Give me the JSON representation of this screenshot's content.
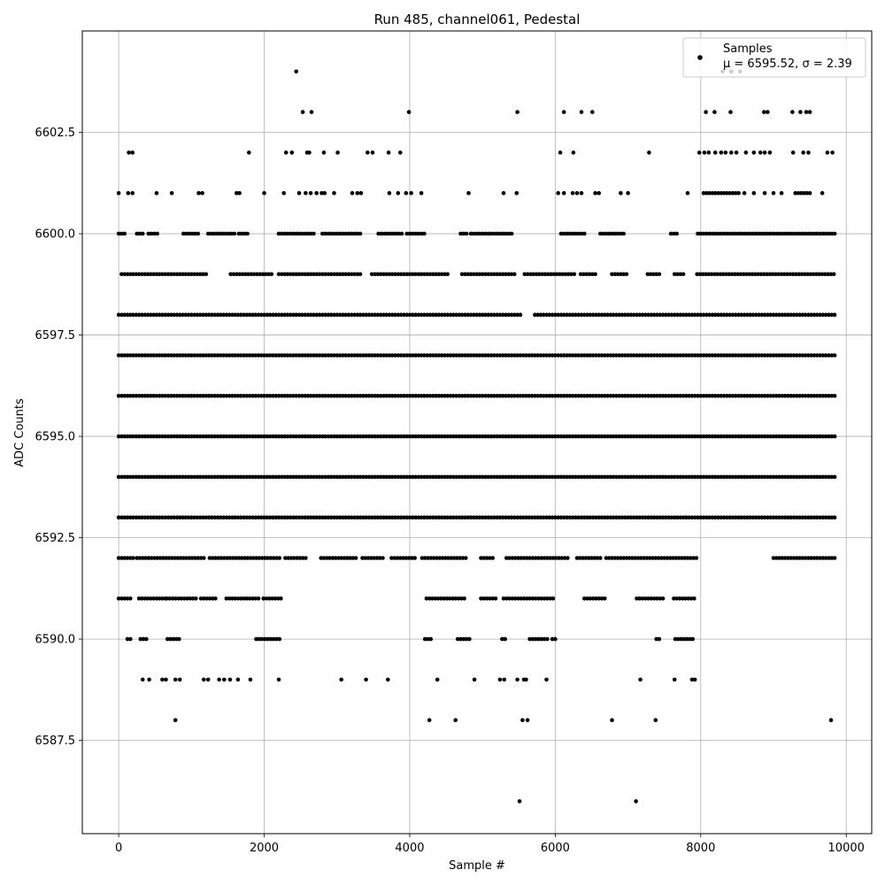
{
  "chart_data": {
    "type": "scatter",
    "title": "Run 485, channel061, Pedestal",
    "xlabel": "Sample #",
    "ylabel": "ADC Counts",
    "xlim": [
      -500,
      10350
    ],
    "ylim": [
      6585.2,
      6605.0
    ],
    "xticks": [
      0,
      2000,
      4000,
      6000,
      8000,
      10000
    ],
    "xtick_labels": [
      "0",
      "2000",
      "4000",
      "6000",
      "8000",
      "10000"
    ],
    "yticks": [
      6587.5,
      6590.0,
      6592.5,
      6595.0,
      6597.5,
      6600.0,
      6602.5
    ],
    "ytick_labels": [
      "6587.5",
      "6590.0",
      "6592.5",
      "6595.0",
      "6597.5",
      "6600.0",
      "6602.5"
    ],
    "grid": true,
    "legend_position": "top-right",
    "marker_color": "#000000",
    "series": [
      {
        "name": "Samples",
        "stats_label": "μ = 6595.52, σ = 2.39",
        "x_range": [
          0,
          9840
        ],
        "levels": [
          {
            "y": 6597,
            "segments": [
              [
                0,
                9840
              ]
            ]
          },
          {
            "y": 6596,
            "segments": [
              [
                0,
                9840
              ]
            ]
          },
          {
            "y": 6595,
            "segments": [
              [
                0,
                9840
              ]
            ]
          },
          {
            "y": 6594,
            "segments": [
              [
                0,
                9840
              ]
            ]
          },
          {
            "y": 6593,
            "segments": [
              [
                0,
                9840
              ]
            ]
          },
          {
            "y": 6598,
            "segments": [
              [
                0,
                5540
              ],
              [
                5720,
                9840
              ]
            ]
          },
          {
            "y": 6599,
            "segments": [
              [
                40,
                1230
              ],
              [
                1540,
                2120
              ],
              [
                2200,
                3320
              ],
              [
                3480,
                4520
              ],
              [
                4720,
                5450
              ],
              [
                5580,
                6260
              ],
              [
                6350,
                6560
              ],
              [
                6780,
                7010
              ],
              [
                7270,
                7450
              ],
              [
                7640,
                7760
              ],
              [
                7950,
                9840
              ]
            ]
          },
          {
            "y": 6592,
            "segments": [
              [
                0,
                220
              ],
              [
                250,
                1180
              ],
              [
                1250,
                2230
              ],
              [
                2290,
                2570
              ],
              [
                2780,
                3280
              ],
              [
                3350,
                3650
              ],
              [
                3750,
                4100
              ],
              [
                4170,
                4800
              ],
              [
                4980,
                5140
              ],
              [
                5330,
                6200
              ],
              [
                6300,
                6620
              ],
              [
                6700,
                7950
              ],
              [
                9000,
                9840
              ]
            ]
          },
          {
            "y": 6600,
            "segments": [
              [
                0,
                100
              ],
              [
                250,
                350
              ],
              [
                410,
                560
              ],
              [
                890,
                1120
              ],
              [
                1230,
                1600
              ],
              [
                1650,
                1800
              ],
              [
                2200,
                2700
              ],
              [
                2800,
                3350
              ],
              [
                3570,
                3900
              ],
              [
                3960,
                4230
              ],
              [
                4700,
                4800
              ],
              [
                4840,
                5400
              ],
              [
                6080,
                6420
              ],
              [
                6620,
                6950
              ],
              [
                7590,
                7670
              ],
              [
                7960,
                9840
              ]
            ]
          },
          {
            "y": 6591,
            "segments": [
              [
                0,
                160
              ],
              [
                280,
                640
              ],
              [
                660,
                1080
              ],
              [
                1130,
                1340
              ],
              [
                1480,
                1950
              ],
              [
                1990,
                2230
              ],
              [
                4230,
                4760
              ],
              [
                4980,
                5200
              ],
              [
                5290,
                6000
              ],
              [
                6400,
                6700
              ],
              [
                7120,
                7500
              ],
              [
                7630,
                7940
              ]
            ]
          },
          {
            "y": 6590,
            "segments": [
              [
                120,
                180
              ],
              [
                300,
                380
              ],
              [
                670,
                860
              ],
              [
                1890,
                2230
              ],
              [
                4210,
                4290
              ],
              [
                4660,
                4830
              ],
              [
                5270,
                5330
              ],
              [
                5650,
                5890
              ],
              [
                5960,
                6010
              ],
              [
                7390,
                7450
              ],
              [
                7650,
                7920
              ]
            ]
          },
          {
            "y": 6601,
            "segments": [
              [
                8040,
                8520
              ],
              [
                9300,
                9500
              ]
            ]
          }
        ],
        "points": [
          [
            2440,
            6604
          ],
          [
            8300,
            6604
          ],
          [
            8420,
            6604
          ],
          [
            8540,
            6604
          ],
          [
            2530,
            6603
          ],
          [
            2650,
            6603
          ],
          [
            3990,
            6603
          ],
          [
            5480,
            6603
          ],
          [
            6120,
            6603
          ],
          [
            6360,
            6603
          ],
          [
            6510,
            6603
          ],
          [
            8070,
            6603
          ],
          [
            8190,
            6603
          ],
          [
            8410,
            6603
          ],
          [
            8870,
            6603
          ],
          [
            8920,
            6603
          ],
          [
            9260,
            6603
          ],
          [
            9370,
            6603
          ],
          [
            9450,
            6603
          ],
          [
            9500,
            6603
          ],
          [
            140,
            6602
          ],
          [
            190,
            6602
          ],
          [
            1790,
            6602
          ],
          [
            2300,
            6602
          ],
          [
            2380,
            6602
          ],
          [
            2590,
            6602
          ],
          [
            2620,
            6602
          ],
          [
            2820,
            6602
          ],
          [
            3010,
            6602
          ],
          [
            3420,
            6602
          ],
          [
            3490,
            6602
          ],
          [
            3710,
            6602
          ],
          [
            3870,
            6602
          ],
          [
            6070,
            6602
          ],
          [
            6250,
            6602
          ],
          [
            7290,
            6602
          ],
          [
            7980,
            6602
          ],
          [
            8050,
            6602
          ],
          [
            8110,
            6602
          ],
          [
            8200,
            6602
          ],
          [
            8280,
            6602
          ],
          [
            8340,
            6602
          ],
          [
            8420,
            6602
          ],
          [
            8490,
            6602
          ],
          [
            8620,
            6602
          ],
          [
            8730,
            6602
          ],
          [
            8820,
            6602
          ],
          [
            8880,
            6602
          ],
          [
            8950,
            6602
          ],
          [
            9270,
            6602
          ],
          [
            9410,
            6602
          ],
          [
            9480,
            6602
          ],
          [
            9740,
            6602
          ],
          [
            9810,
            6602
          ],
          [
            0,
            6601
          ],
          [
            130,
            6601
          ],
          [
            190,
            6601
          ],
          [
            520,
            6601
          ],
          [
            730,
            6601
          ],
          [
            1100,
            6601
          ],
          [
            1150,
            6601
          ],
          [
            1620,
            6601
          ],
          [
            1660,
            6601
          ],
          [
            2000,
            6601
          ],
          [
            2270,
            6601
          ],
          [
            2480,
            6601
          ],
          [
            2570,
            6601
          ],
          [
            2640,
            6601
          ],
          [
            2720,
            6601
          ],
          [
            2790,
            6601
          ],
          [
            2830,
            6601
          ],
          [
            2960,
            6601
          ],
          [
            3210,
            6601
          ],
          [
            3280,
            6601
          ],
          [
            3330,
            6601
          ],
          [
            3720,
            6601
          ],
          [
            3840,
            6601
          ],
          [
            3950,
            6601
          ],
          [
            4020,
            6601
          ],
          [
            4160,
            6601
          ],
          [
            4810,
            6601
          ],
          [
            5290,
            6601
          ],
          [
            5470,
            6601
          ],
          [
            6040,
            6601
          ],
          [
            6120,
            6601
          ],
          [
            6240,
            6601
          ],
          [
            6300,
            6601
          ],
          [
            6360,
            6601
          ],
          [
            6550,
            6601
          ],
          [
            6600,
            6601
          ],
          [
            6900,
            6601
          ],
          [
            7000,
            6601
          ],
          [
            7820,
            6601
          ],
          [
            8600,
            6601
          ],
          [
            8730,
            6601
          ],
          [
            8880,
            6601
          ],
          [
            9000,
            6601
          ],
          [
            9110,
            6601
          ],
          [
            9670,
            6601
          ],
          [
            330,
            6589
          ],
          [
            420,
            6589
          ],
          [
            600,
            6589
          ],
          [
            650,
            6589
          ],
          [
            780,
            6589
          ],
          [
            840,
            6589
          ],
          [
            1170,
            6589
          ],
          [
            1230,
            6589
          ],
          [
            1380,
            6589
          ],
          [
            1450,
            6589
          ],
          [
            1530,
            6589
          ],
          [
            1640,
            6589
          ],
          [
            1810,
            6589
          ],
          [
            2200,
            6589
          ],
          [
            3060,
            6589
          ],
          [
            3400,
            6589
          ],
          [
            3700,
            6589
          ],
          [
            4380,
            6589
          ],
          [
            4890,
            6589
          ],
          [
            5240,
            6589
          ],
          [
            5300,
            6589
          ],
          [
            5480,
            6589
          ],
          [
            5570,
            6589
          ],
          [
            5600,
            6589
          ],
          [
            5880,
            6589
          ],
          [
            7170,
            6589
          ],
          [
            7640,
            6589
          ],
          [
            7880,
            6589
          ],
          [
            7920,
            6589
          ],
          [
            780,
            6588
          ],
          [
            4270,
            6588
          ],
          [
            4630,
            6588
          ],
          [
            5550,
            6588
          ],
          [
            5620,
            6588
          ],
          [
            6780,
            6588
          ],
          [
            7380,
            6588
          ],
          [
            9790,
            6588
          ],
          [
            5510,
            6586
          ],
          [
            7110,
            6586
          ]
        ]
      }
    ]
  }
}
